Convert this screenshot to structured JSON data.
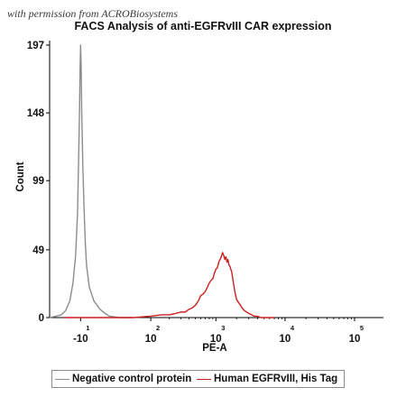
{
  "watermark": "with permission from ACROBiosystems",
  "chart_data": {
    "type": "line",
    "title": "FACS Analysis of anti-EGFRvIII CAR expression",
    "xlabel": "PE-A",
    "ylabel": "Count",
    "x_scale": "biexponential",
    "x_ticks": [
      {
        "value": -10,
        "base": "-10",
        "exp": "1"
      },
      {
        "value": 100,
        "base": "10",
        "exp": "2"
      },
      {
        "value": 1000,
        "base": "10",
        "exp": "3"
      },
      {
        "value": 10000,
        "base": "10",
        "exp": "4"
      },
      {
        "value": 100000,
        "base": "10",
        "exp": "5"
      }
    ],
    "y_ticks": [
      0,
      49,
      99,
      148,
      197
    ],
    "ylim": [
      0,
      197
    ],
    "grid": false,
    "legend_position": "bottom",
    "series": [
      {
        "name": "Negative control protein",
        "color": "#8c8c8c",
        "x": [
          -60,
          -45,
          -35,
          -28,
          -22,
          -18,
          -15,
          -13,
          -12,
          -11,
          -10.5,
          -10,
          -9.5,
          -9,
          -8,
          -7,
          -6,
          -5,
          -3,
          0,
          4,
          8,
          12,
          18,
          25,
          35,
          45
        ],
        "y": [
          0,
          1,
          2,
          5,
          12,
          25,
          45,
          75,
          110,
          150,
          178,
          197,
          182,
          150,
          110,
          80,
          55,
          38,
          22,
          12,
          6,
          3,
          1,
          0.5,
          0,
          0,
          0
        ]
      },
      {
        "name": "Human EGFRvIII, His Tag",
        "color": "#cc1f1f",
        "x": [
          -30,
          10,
          50,
          100,
          150,
          200,
          250,
          300,
          350,
          400,
          450,
          500,
          550,
          600,
          650,
          700,
          750,
          800,
          850,
          900,
          950,
          1000,
          1050,
          1100,
          1150,
          1200,
          1250,
          1300,
          1350,
          1400,
          1450,
          1500,
          1550,
          1600,
          1650,
          1700,
          1800,
          1900,
          2000,
          2200,
          2400,
          2600,
          2800,
          3000,
          3300,
          3600,
          4000,
          4500,
          5000,
          6000,
          7000
        ],
        "y": [
          0,
          0,
          0,
          1,
          2,
          2,
          3,
          4,
          4,
          6,
          7,
          9,
          12,
          16,
          17,
          19,
          22,
          25,
          27,
          28,
          32,
          35,
          36,
          40,
          42,
          44,
          47,
          45,
          42,
          44,
          40,
          42,
          38,
          37,
          35,
          33,
          25,
          18,
          13,
          10,
          7,
          5,
          4,
          3,
          2,
          1,
          1,
          0,
          0,
          0,
          0
        ]
      }
    ]
  }
}
